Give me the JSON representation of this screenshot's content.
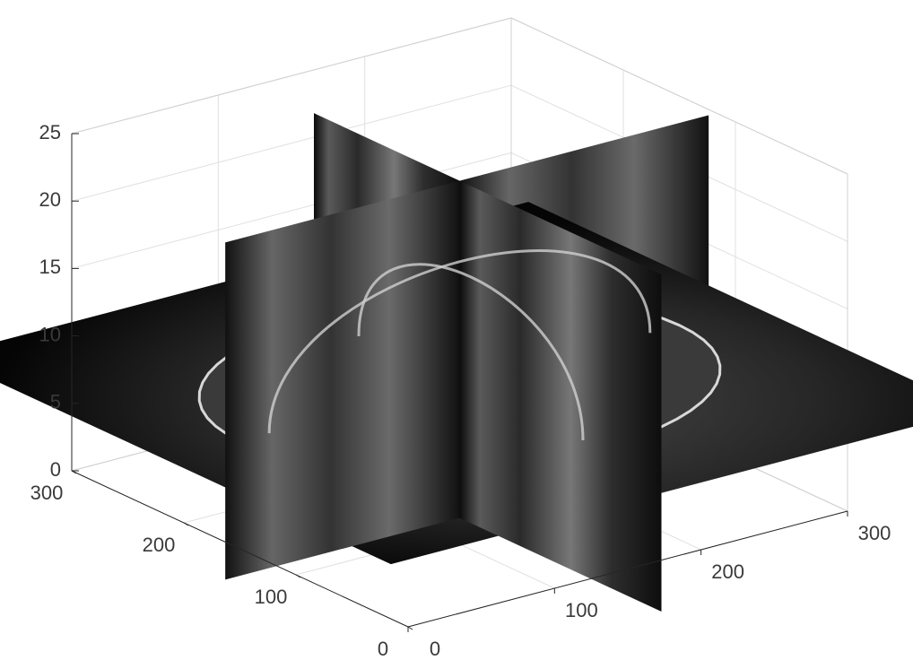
{
  "chart_data": {
    "type": "slice",
    "axes": {
      "x": {
        "lim": [
          0,
          300
        ],
        "ticks": [
          0,
          100,
          200,
          300
        ],
        "label": ""
      },
      "y": {
        "lim": [
          0,
          300
        ],
        "ticks": [
          0,
          100,
          200,
          300
        ],
        "label": ""
      },
      "z": {
        "lim": [
          0,
          25
        ],
        "ticks": [
          0,
          5,
          10,
          15,
          20,
          25
        ],
        "label": ""
      }
    },
    "grid": true,
    "colormap": "gray",
    "slices": {
      "x": [
        150
      ],
      "y": [
        150
      ],
      "z": [
        8
      ]
    }
  }
}
